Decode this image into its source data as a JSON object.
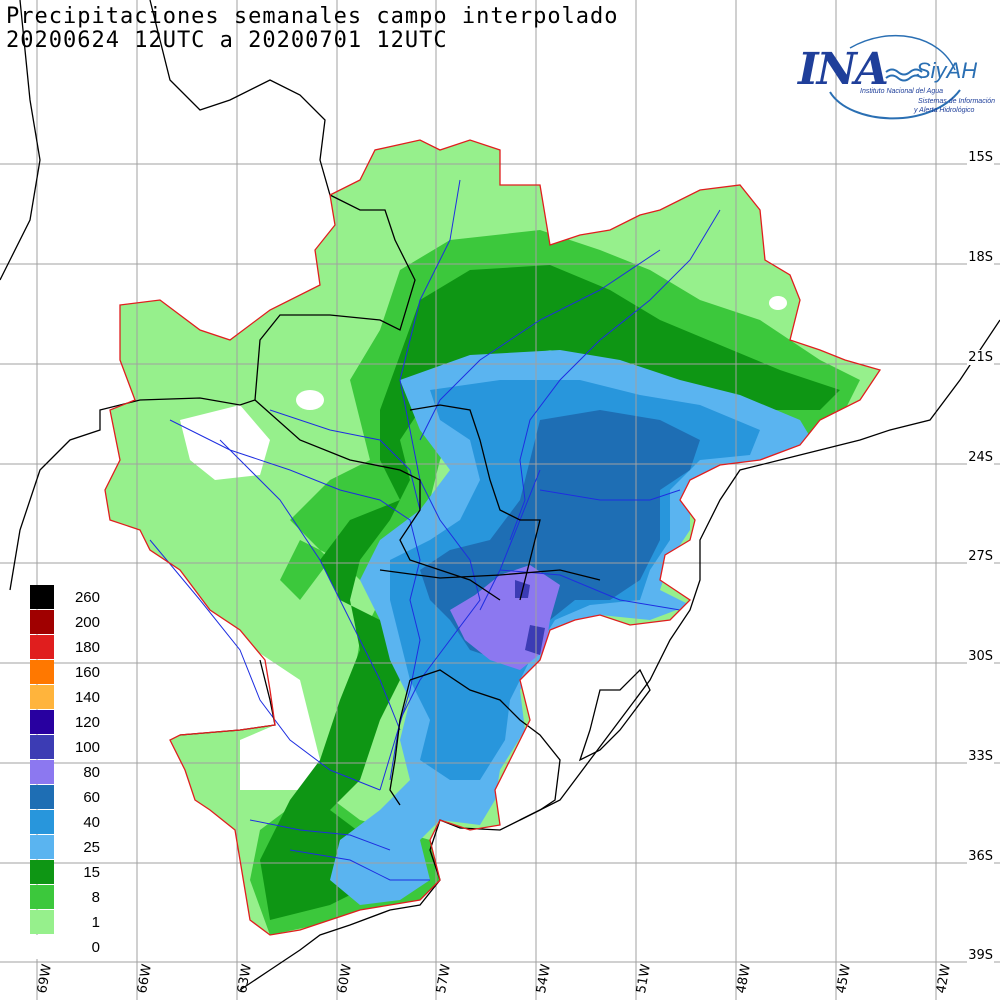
{
  "title_line1": "Precipitaciones semanales campo interpolado",
  "title_line2": "20200624 12UTC a 20200701 12UTC",
  "logo": {
    "main": "INA",
    "siyah": "SiyAH",
    "sub1": "Instituto Nacional del Agua",
    "sub2": "Sistemas de Información",
    "sub3": "y Alerta Hidrológico"
  },
  "latitude_labels": [
    "15S",
    "18S",
    "21S",
    "24S",
    "27S",
    "30S",
    "33S",
    "36S",
    "39S"
  ],
  "longitude_labels": [
    "69W",
    "66W",
    "63W",
    "60W",
    "57W",
    "54W",
    "51W",
    "48W",
    "45W",
    "42W"
  ],
  "legend": {
    "items": [
      {
        "label": "260",
        "color": "#000000"
      },
      {
        "label": "200",
        "color": "#a00000"
      },
      {
        "label": "180",
        "color": "#e01e1e"
      },
      {
        "label": "160",
        "color": "#ff7800"
      },
      {
        "label": "140",
        "color": "#ffb43c"
      },
      {
        "label": "120",
        "color": "#2800a0"
      },
      {
        "label": "100",
        "color": "#3c3cb4"
      },
      {
        "label": "80",
        "color": "#8c78f0"
      },
      {
        "label": "60",
        "color": "#1e6eb4"
      },
      {
        "label": "40",
        "color": "#2896dc"
      },
      {
        "label": "25",
        "color": "#5ab4f0"
      },
      {
        "label": "15",
        "color": "#0e9614"
      },
      {
        "label": "8",
        "color": "#3cc83c"
      },
      {
        "label": "1",
        "color": "#96f08c"
      },
      {
        "label": "0",
        "color": "#ffffff"
      }
    ]
  },
  "colors": {
    "basin_outline": "#e01e1e",
    "country_borders": "#000000",
    "rivers": "#1e2ee0",
    "grid": "#a0a0a0"
  }
}
